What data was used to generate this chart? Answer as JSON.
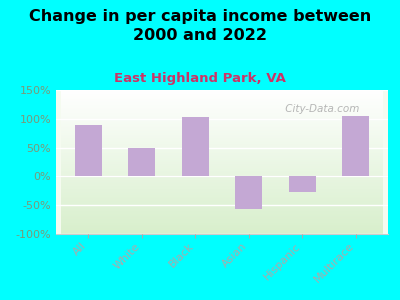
{
  "title": "Change in per capita income between\n2000 and 2022",
  "subtitle": "East Highland Park, VA",
  "categories": [
    "All",
    "White",
    "Black",
    "Asian",
    "Hispanic",
    "Multirace"
  ],
  "values": [
    90,
    50,
    103,
    -57,
    -27,
    105
  ],
  "bar_color": "#c4a8d4",
  "background_outer": "#00ffff",
  "title_fontsize": 11.5,
  "subtitle_fontsize": 9.5,
  "tick_fontsize": 8,
  "ylim": [
    -100,
    150
  ],
  "yticks": [
    -100,
    -50,
    0,
    50,
    100,
    150
  ],
  "watermark": " City-Data.com",
  "subtitle_color": "#cc3366",
  "tick_color": "#7a9a7a",
  "bar_width": 0.5
}
